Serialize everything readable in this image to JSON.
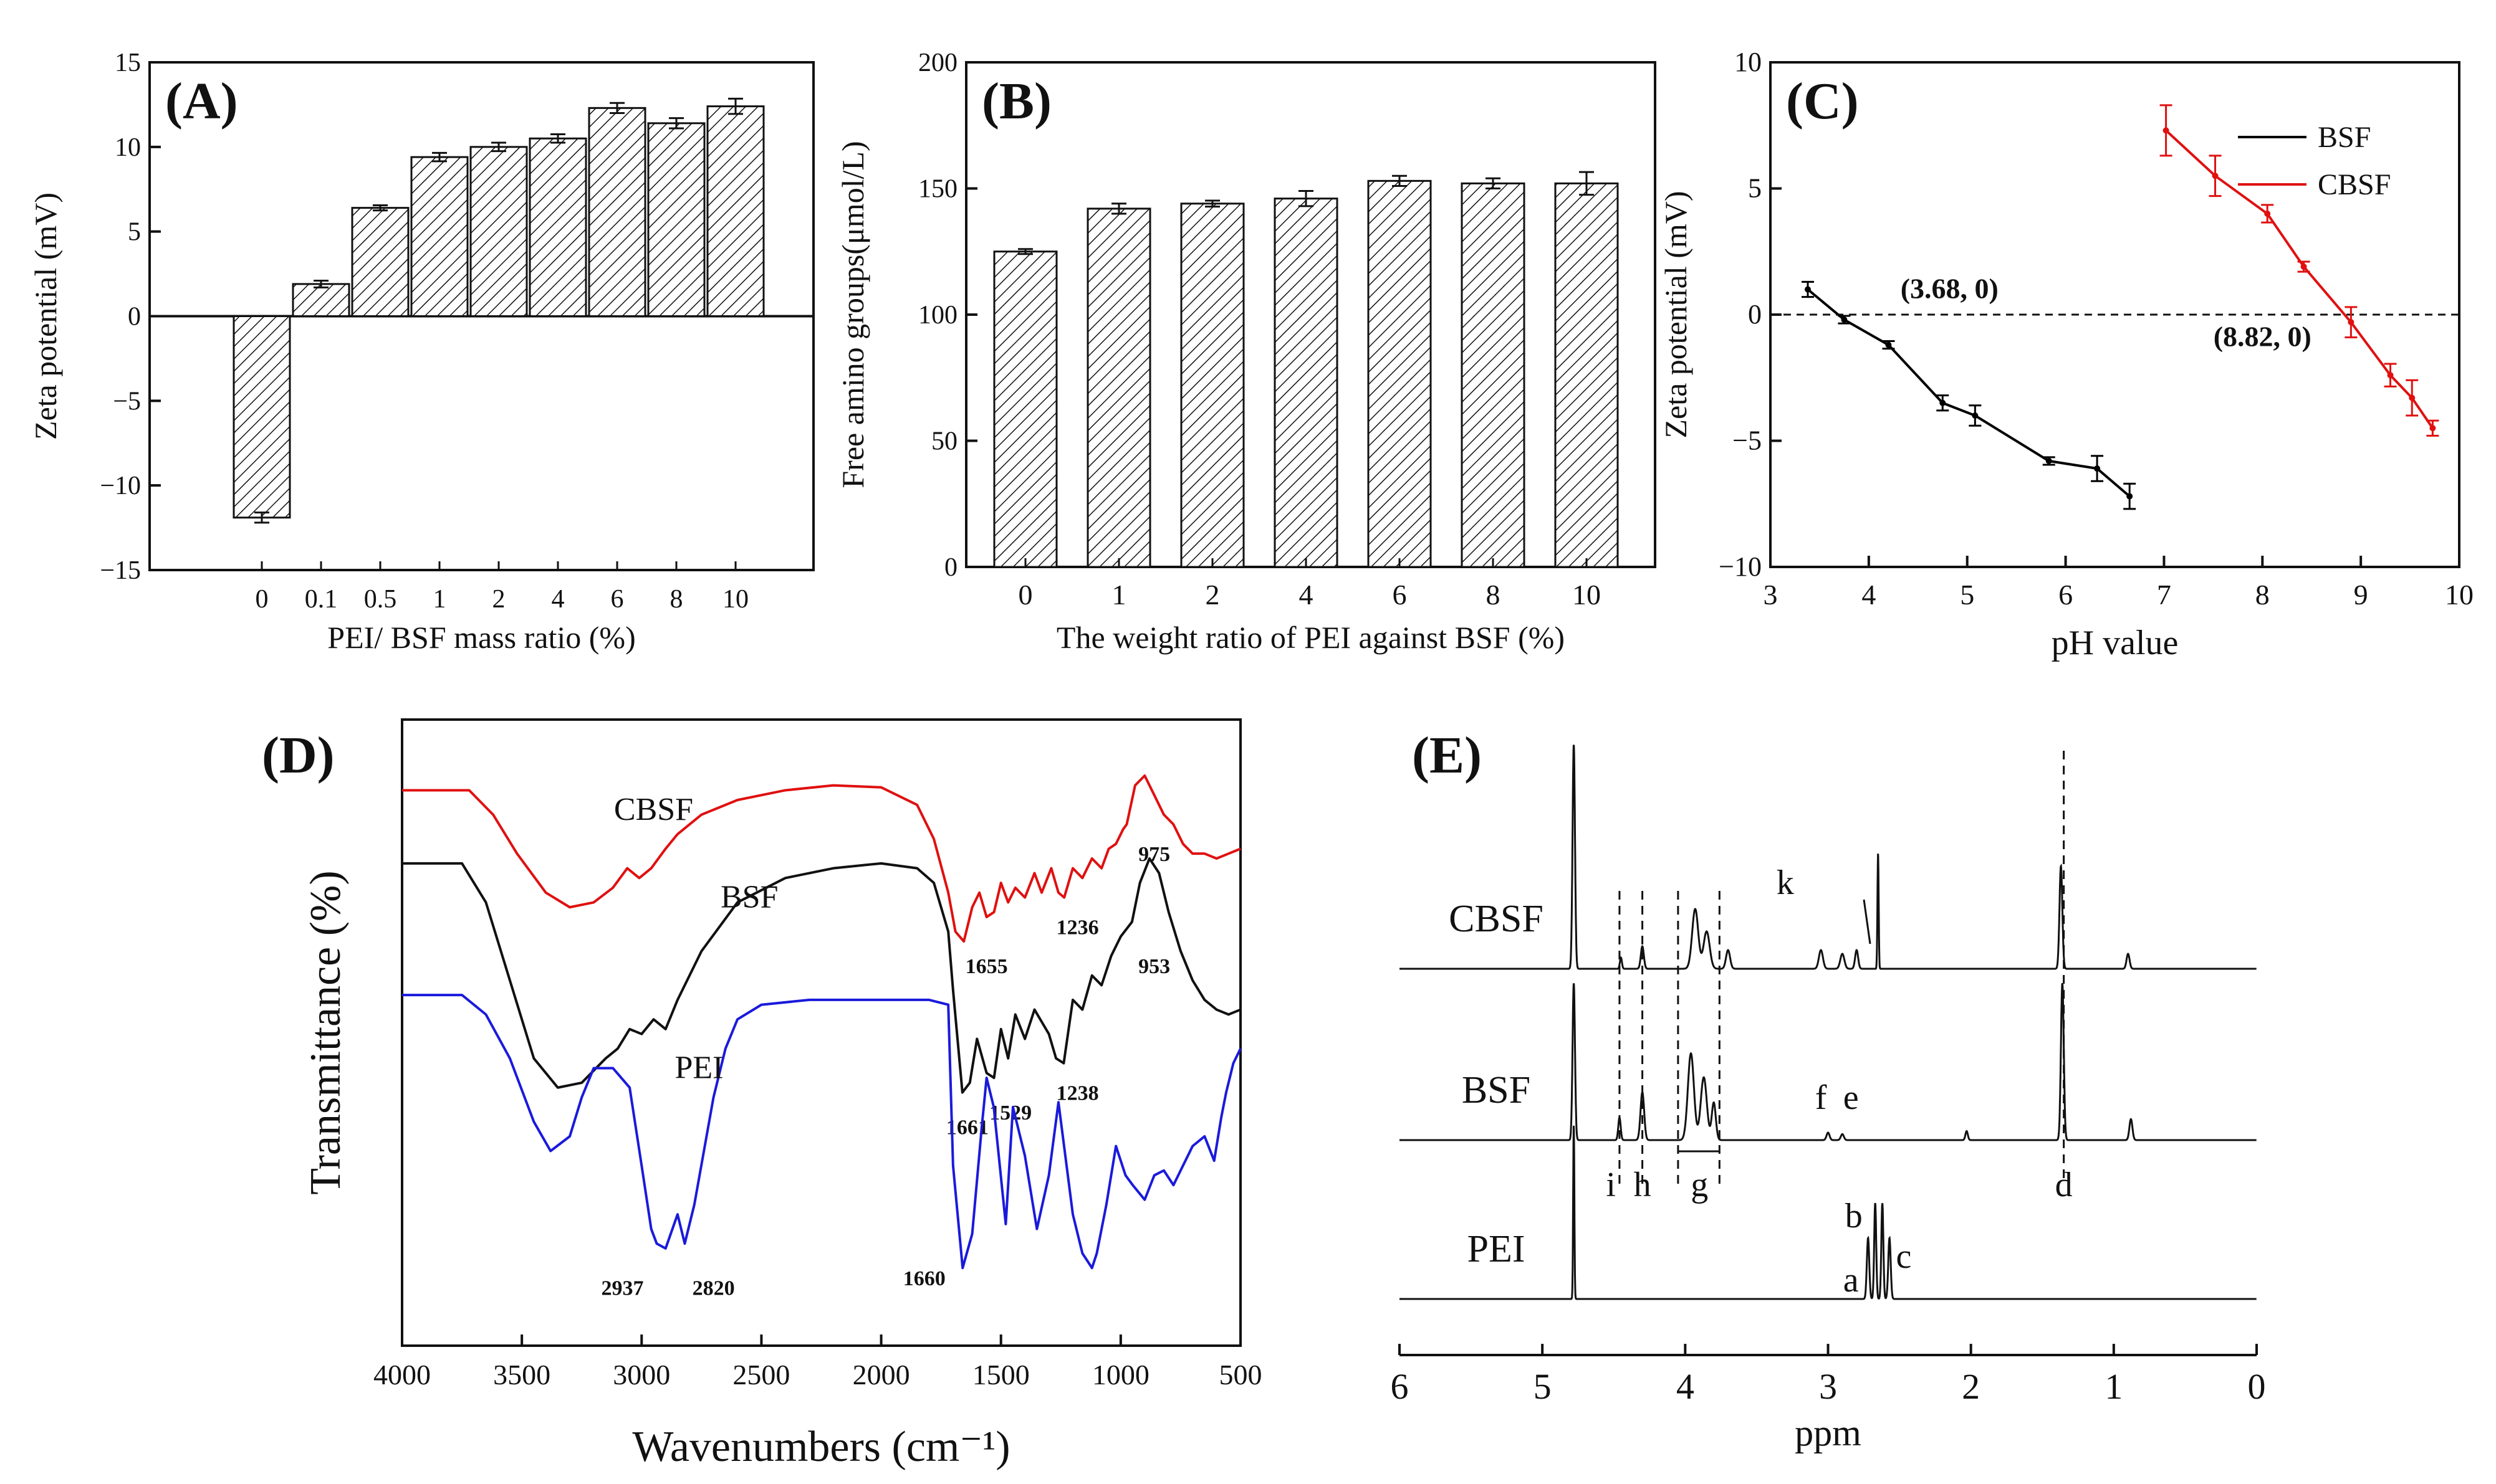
{
  "chart_data": [
    {
      "id": "A",
      "type": "bar",
      "panel_label": "(A)",
      "xlabel": "PEI/ BSF mass ratio (%)",
      "ylabel": "Zeta potential (mV)",
      "ylim": [
        -15,
        15
      ],
      "yticks": [
        -15,
        -10,
        -5,
        0,
        5,
        10,
        15
      ],
      "ytick_labels": [
        "−15",
        "−10",
        "−5",
        "0",
        "5",
        "10",
        "15"
      ],
      "categories": [
        "0",
        "0.1",
        "0.5",
        "1",
        "2",
        "4",
        "6",
        "8",
        "10"
      ],
      "values": [
        -11.9,
        1.9,
        6.4,
        9.4,
        10.0,
        10.5,
        12.3,
        11.4,
        12.4
      ],
      "errors": [
        0.3,
        0.2,
        0.15,
        0.25,
        0.25,
        0.25,
        0.3,
        0.3,
        0.45
      ]
    },
    {
      "id": "B",
      "type": "bar",
      "panel_label": "(B)",
      "xlabel": "The weight ratio of PEI against BSF (%)",
      "ylabel": "Free amino groups(μmol/L)",
      "ylim": [
        0,
        200
      ],
      "yticks": [
        0,
        50,
        100,
        150,
        200
      ],
      "ytick_labels": [
        "0",
        "50",
        "100",
        "150",
        "200"
      ],
      "categories": [
        "0",
        "1",
        "2",
        "4",
        "6",
        "8",
        "10"
      ],
      "values": [
        125,
        142,
        144,
        146,
        153,
        152,
        152
      ],
      "errors": [
        1.0,
        2.0,
        1.2,
        3.0,
        2.0,
        2.0,
        4.5
      ]
    },
    {
      "id": "C",
      "type": "line",
      "panel_label": "(C)",
      "xlabel": "pH value",
      "ylabel": "Zeta potential (mV)",
      "xlim": [
        3,
        10
      ],
      "ylim": [
        -10,
        10
      ],
      "xticks": [
        3,
        4,
        5,
        6,
        7,
        8,
        9,
        10
      ],
      "xtick_labels": [
        "3",
        "4",
        "5",
        "6",
        "7",
        "8",
        "9",
        "10"
      ],
      "yticks": [
        -10,
        -5,
        0,
        5,
        10
      ],
      "ytick_labels": [
        "−10",
        "−5",
        "0",
        "5",
        "10"
      ],
      "zero_line": true,
      "series": [
        {
          "name": "BSF",
          "color": "#000000",
          "x": [
            3.38,
            3.75,
            4.2,
            4.75,
            5.08,
            5.83,
            6.32,
            6.65
          ],
          "y": [
            1.0,
            -0.2,
            -1.2,
            -3.5,
            -4.0,
            -5.8,
            -6.1,
            -7.2
          ],
          "errors": [
            0.3,
            0.15,
            0.15,
            0.3,
            0.4,
            0.15,
            0.5,
            0.5
          ]
        },
        {
          "name": "CBSF",
          "color": "#e01010",
          "x": [
            7.02,
            7.52,
            8.05,
            8.42,
            8.9,
            9.3,
            9.52,
            9.73
          ],
          "y": [
            7.3,
            5.5,
            4.0,
            1.9,
            -0.3,
            -2.4,
            -3.3,
            -4.5
          ],
          "errors": [
            1.0,
            0.8,
            0.35,
            0.2,
            0.6,
            0.45,
            0.7,
            0.3
          ]
        }
      ],
      "annotations": [
        {
          "text": "(3.68, 0)",
          "x": 4.82,
          "y": 1.0
        },
        {
          "text": "(8.82, 0)",
          "x": 8.0,
          "y": -0.9
        }
      ],
      "legend_position": "top-right"
    },
    {
      "id": "D",
      "type": "line",
      "panel_label": "(D)",
      "xlabel": "Wavenumbers (cm⁻¹)",
      "ylabel": "Transmittance (%)",
      "xlim": [
        4000,
        500
      ],
      "xticks": [
        4000,
        3500,
        3000,
        2500,
        2000,
        1500,
        1000,
        500
      ],
      "xtick_labels": [
        "4000",
        "3500",
        "3000",
        "2500",
        "2000",
        "1500",
        "1000",
        "500"
      ],
      "series": [
        {
          "name": "CBSF",
          "color": "#e01010",
          "x": [
            4000,
            3720,
            3620,
            3520,
            3400,
            3300,
            3200,
            3120,
            3060,
            3010,
            2960,
            2900,
            2850,
            2750,
            2600,
            2400,
            2200,
            2000,
            1850,
            1780,
            1720,
            1690,
            1655,
            1620,
            1590,
            1560,
            1529,
            1500,
            1470,
            1440,
            1400,
            1360,
            1330,
            1290,
            1260,
            1236,
            1200,
            1160,
            1120,
            1080,
            1050,
            1020,
            990,
            975,
            940,
            900,
            860,
            820,
            780,
            740,
            700,
            650,
            600,
            550,
            500
          ],
          "y": [
            9.85,
            9.85,
            9.6,
            9.2,
            8.8,
            8.65,
            8.7,
            8.85,
            9.05,
            8.95,
            9.05,
            9.25,
            9.4,
            9.6,
            9.75,
            9.85,
            9.9,
            9.88,
            9.7,
            9.35,
            8.8,
            8.4,
            8.3,
            8.65,
            8.8,
            8.55,
            8.6,
            8.9,
            8.7,
            8.85,
            8.75,
            9.0,
            8.8,
            9.05,
            8.8,
            8.75,
            9.05,
            8.95,
            9.15,
            9.05,
            9.25,
            9.3,
            9.45,
            9.5,
            9.9,
            10.0,
            9.8,
            9.6,
            9.5,
            9.3,
            9.2,
            9.2,
            9.15,
            9.2,
            9.25
          ],
          "labels": [
            {
              "text": "CBSF",
              "x": 2950,
              "y": 9.65
            },
            {
              "text": "1655",
              "x": 1560,
              "y": 8.05
            },
            {
              "text": "1236",
              "x": 1180,
              "y": 8.45
            },
            {
              "text": "975",
              "x": 860,
              "y": 9.2
            }
          ]
        },
        {
          "name": "BSF",
          "color": "#111111",
          "x": [
            4000,
            3750,
            3650,
            3550,
            3450,
            3350,
            3250,
            3150,
            3100,
            3050,
            3000,
            2950,
            2900,
            2850,
            2750,
            2600,
            2400,
            2200,
            2000,
            1850,
            1780,
            1720,
            1700,
            1661,
            1630,
            1600,
            1560,
            1529,
            1500,
            1470,
            1440,
            1400,
            1360,
            1300,
            1270,
            1238,
            1200,
            1160,
            1120,
            1080,
            1040,
            1000,
            953,
            920,
            880,
            840,
            800,
            750,
            700,
            650,
            600,
            550,
            500
          ],
          "y": [
            9.1,
            9.1,
            8.7,
            7.9,
            7.1,
            6.8,
            6.85,
            7.1,
            7.2,
            7.4,
            7.35,
            7.5,
            7.4,
            7.7,
            8.2,
            8.7,
            8.95,
            9.05,
            9.1,
            9.05,
            8.9,
            8.4,
            7.8,
            6.75,
            6.85,
            7.3,
            6.95,
            6.9,
            7.4,
            7.1,
            7.55,
            7.3,
            7.6,
            7.35,
            7.1,
            7.05,
            7.7,
            7.6,
            7.95,
            7.85,
            8.15,
            8.35,
            8.5,
            8.9,
            9.15,
            9.0,
            8.6,
            8.2,
            7.9,
            7.7,
            7.6,
            7.55,
            7.6
          ],
          "labels": [
            {
              "text": "BSF",
              "x": 2550,
              "y": 8.75
            },
            {
              "text": "1661",
              "x": 1640,
              "y": 6.4
            },
            {
              "text": "1529",
              "x": 1460,
              "y": 6.55
            },
            {
              "text": "1238",
              "x": 1180,
              "y": 6.75
            },
            {
              "text": "953",
              "x": 860,
              "y": 8.05
            }
          ]
        },
        {
          "name": "PEI",
          "color": "#1a1adc",
          "x": [
            4000,
            3750,
            3650,
            3550,
            3450,
            3380,
            3300,
            3250,
            3200,
            3120,
            3050,
            3000,
            2960,
            2937,
            2900,
            2850,
            2820,
            2780,
            2740,
            2700,
            2650,
            2600,
            2500,
            2300,
            2000,
            1800,
            1720,
            1700,
            1660,
            1620,
            1580,
            1560,
            1530,
            1480,
            1450,
            1400,
            1350,
            1300,
            1260,
            1200,
            1160,
            1120,
            1100,
            1060,
            1020,
            980,
            950,
            900,
            860,
            820,
            780,
            740,
            700,
            650,
            610,
            580,
            560,
            530,
            500
          ],
          "y": [
            7.75,
            7.75,
            7.55,
            7.1,
            6.45,
            6.15,
            6.3,
            6.7,
            7.0,
            7.0,
            6.8,
            6.0,
            5.35,
            5.2,
            5.15,
            5.5,
            5.2,
            5.6,
            6.15,
            6.7,
            7.2,
            7.5,
            7.65,
            7.7,
            7.7,
            7.7,
            7.65,
            6.0,
            4.95,
            5.3,
            6.4,
            6.9,
            6.6,
            5.4,
            6.6,
            6.1,
            5.35,
            5.9,
            6.65,
            5.5,
            5.1,
            4.95,
            5.1,
            5.6,
            6.2,
            5.9,
            5.8,
            5.65,
            5.9,
            5.95,
            5.8,
            6.0,
            6.2,
            6.3,
            6.05,
            6.5,
            6.75,
            7.05,
            7.2
          ],
          "labels": [
            {
              "text": "PEI",
              "x": 2760,
              "y": 7.0
            },
            {
              "text": "2937",
              "x": 3080,
              "y": 4.75
            },
            {
              "text": "2820",
              "x": 2700,
              "y": 4.75
            },
            {
              "text": "1660",
              "x": 1820,
              "y": 4.85
            }
          ]
        }
      ]
    },
    {
      "id": "E",
      "type": "line",
      "panel_label": "(E)",
      "xlabel": "ppm",
      "xlim": [
        6,
        0
      ],
      "xticks": [
        6,
        5,
        4,
        3,
        2,
        1,
        0
      ],
      "xtick_labels": [
        "6",
        "5",
        "4",
        "3",
        "2",
        "1",
        "0"
      ],
      "dashed_lines_ppm": [
        4.46,
        4.3,
        4.05,
        3.76,
        1.35
      ],
      "series": [
        {
          "name": "CBSF",
          "baseline_ppm_peaks": [
            {
              "ppm": 4.78,
              "height": 1.2,
              "width": 0.012
            },
            {
              "ppm": 4.3,
              "height": 0.12,
              "width": 0.015
            },
            {
              "ppm": 4.45,
              "height": 0.06,
              "width": 0.01
            },
            {
              "ppm": 3.93,
              "height": 0.32,
              "width": 0.03
            },
            {
              "ppm": 3.85,
              "height": 0.2,
              "width": 0.03
            },
            {
              "ppm": 3.7,
              "height": 0.1,
              "width": 0.02
            },
            {
              "ppm": 3.05,
              "height": 0.1,
              "width": 0.02
            },
            {
              "ppm": 2.9,
              "height": 0.08,
              "width": 0.02
            },
            {
              "ppm": 2.8,
              "height": 0.1,
              "width": 0.015
            },
            {
              "ppm": 2.65,
              "height": 0.62,
              "width": 0.006
            },
            {
              "ppm": 1.37,
              "height": 0.55,
              "width": 0.014
            },
            {
              "ppm": 0.9,
              "height": 0.08,
              "width": 0.015
            }
          ],
          "labels": [
            {
              "text": "CBSF",
              "ppm": 5.6
            },
            {
              "text": "k",
              "ppm": 3.3
            }
          ]
        },
        {
          "name": "BSF",
          "baseline_ppm_peaks": [
            {
              "ppm": 4.78,
              "height": 1.05,
              "width": 0.012
            },
            {
              "ppm": 4.46,
              "height": 0.15,
              "width": 0.012
            },
            {
              "ppm": 4.3,
              "height": 0.32,
              "width": 0.018
            },
            {
              "ppm": 3.96,
              "height": 0.58,
              "width": 0.03
            },
            {
              "ppm": 3.87,
              "height": 0.42,
              "width": 0.03
            },
            {
              "ppm": 3.8,
              "height": 0.25,
              "width": 0.02
            },
            {
              "ppm": 3.0,
              "height": 0.05,
              "width": 0.015
            },
            {
              "ppm": 2.9,
              "height": 0.04,
              "width": 0.015
            },
            {
              "ppm": 2.03,
              "height": 0.06,
              "width": 0.012
            },
            {
              "ppm": 1.36,
              "height": 1.05,
              "width": 0.014
            },
            {
              "ppm": 0.88,
              "height": 0.14,
              "width": 0.015
            }
          ],
          "labels": [
            {
              "text": "BSF",
              "ppm": 5.6
            },
            {
              "text": "f",
              "ppm": 3.05
            },
            {
              "text": "e",
              "ppm": 2.84
            },
            {
              "text": "i",
              "ppm": 4.52
            },
            {
              "text": "h",
              "ppm": 4.3
            },
            {
              "text": "g",
              "ppm": 3.9
            },
            {
              "text": "d",
              "ppm": 1.35
            }
          ]
        },
        {
          "name": "PEI",
          "baseline_ppm_peaks": [
            {
              "ppm": 4.78,
              "height": 1.0,
              "width": 0.006
            },
            {
              "ppm": 2.72,
              "height": 0.35,
              "width": 0.012
            },
            {
              "ppm": 2.67,
              "height": 0.55,
              "width": 0.01
            },
            {
              "ppm": 2.62,
              "height": 0.55,
              "width": 0.01
            },
            {
              "ppm": 2.57,
              "height": 0.35,
              "width": 0.012
            }
          ],
          "labels": [
            {
              "text": "PEI",
              "ppm": 5.6
            },
            {
              "text": "b",
              "ppm": 2.82
            },
            {
              "text": "a",
              "ppm": 2.84
            },
            {
              "text": "c",
              "ppm": 2.47
            }
          ]
        }
      ]
    }
  ]
}
